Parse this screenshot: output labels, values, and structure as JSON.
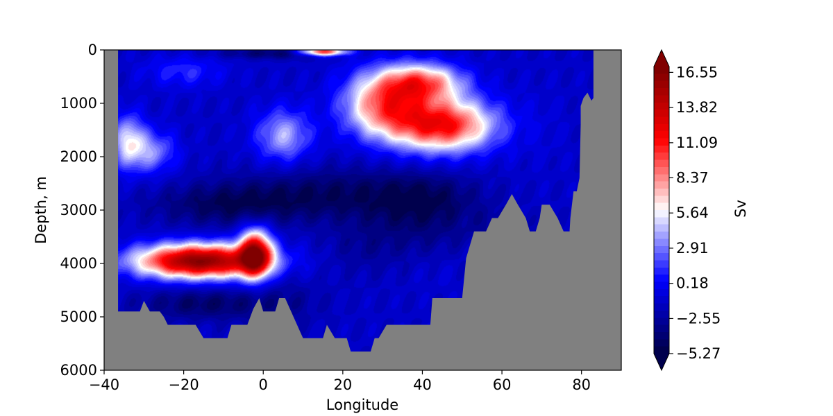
{
  "chart_data": {
    "type": "heatmap",
    "title": "",
    "xlabel": "Longitude",
    "ylabel": "Depth, m",
    "xlim": [
      -40,
      90
    ],
    "ylim": [
      6000,
      0
    ],
    "x_ticks": [
      -40,
      -20,
      0,
      20,
      40,
      60,
      80
    ],
    "x_tick_labels": [
      "−40",
      "−20",
      "0",
      "20",
      "40",
      "60",
      "80"
    ],
    "y_ticks": [
      0,
      1000,
      2000,
      3000,
      4000,
      5000,
      6000
    ],
    "y_tick_labels": [
      "0",
      "1000",
      "2000",
      "3000",
      "4000",
      "5000",
      "6000"
    ],
    "grid": false,
    "land_color": "#808080",
    "colorbar": {
      "label": "Sv",
      "colormap": "seismic",
      "extend": "both",
      "vmin": -5.27,
      "vmax": 17.0,
      "ticks": [
        -5.27,
        -2.55,
        0.18,
        2.91,
        5.64,
        8.37,
        11.09,
        13.82,
        16.55
      ],
      "tick_labels": [
        "−5.27",
        "−2.55",
        "0.18",
        "2.91",
        "5.64",
        "8.37",
        "11.09",
        "13.82",
        "16.55"
      ]
    },
    "features": [
      {
        "lon": 45,
        "depth": 1400,
        "value": 14,
        "sx": 13,
        "sy": 500
      },
      {
        "lon": 30,
        "depth": 1000,
        "value": 10,
        "sx": 10,
        "sy": 600
      },
      {
        "lon": 40,
        "depth": 600,
        "value": 10,
        "sx": 10,
        "sy": 350
      },
      {
        "lon": 15,
        "depth": 30,
        "value": 14,
        "sx": 6,
        "sy": 80
      },
      {
        "lon": 5,
        "depth": 1600,
        "value": 5,
        "sx": 7,
        "sy": 500
      },
      {
        "lon": -34,
        "depth": 1700,
        "value": 6,
        "sx": 4,
        "sy": 500
      },
      {
        "lon": -28,
        "depth": 1900,
        "value": 4,
        "sx": 6,
        "sy": 400
      },
      {
        "lon": -20,
        "depth": 400,
        "value": 1.5,
        "sx": 10,
        "sy": 300
      },
      {
        "lon": -16,
        "depth": 3950,
        "value": 20,
        "sx": 16,
        "sy": 320
      },
      {
        "lon": -2,
        "depth": 3800,
        "value": 16,
        "sx": 4,
        "sy": 450
      },
      {
        "lon": 15,
        "depth": 2700,
        "value": -5,
        "sx": 22,
        "sy": 500
      },
      {
        "lon": -10,
        "depth": 2900,
        "value": -5,
        "sx": 18,
        "sy": 400
      },
      {
        "lon": -15,
        "depth": 4750,
        "value": -5,
        "sx": 16,
        "sy": 300
      },
      {
        "lon": 5,
        "depth": 4700,
        "value": -3,
        "sx": 10,
        "sy": 500
      },
      {
        "lon": 40,
        "depth": 2700,
        "value": -4,
        "sx": 14,
        "sy": 450
      },
      {
        "lon": 40,
        "depth": 3200,
        "value": -4,
        "sx": 14,
        "sy": 600
      },
      {
        "lon": 25,
        "depth": 3700,
        "value": -3,
        "sx": 10,
        "sy": 500
      },
      {
        "lon": 45,
        "depth": 4200,
        "value": -1,
        "sx": 8,
        "sy": 400
      },
      {
        "lon": 5,
        "depth": 60,
        "value": -5,
        "sx": 16,
        "sy": 100
      },
      {
        "lon": 70,
        "depth": 1500,
        "value": -1,
        "sx": 8,
        "sy": 900
      },
      {
        "lon": 60,
        "depth": 3300,
        "value": -3,
        "sx": 6,
        "sy": 300
      }
    ],
    "bottom_profile": [
      [
        -36.5,
        4900
      ],
      [
        -31,
        4900
      ],
      [
        -30,
        4700
      ],
      [
        -28.5,
        4900
      ],
      [
        -26,
        4900
      ],
      [
        -25,
        5000
      ],
      [
        -24,
        5150
      ],
      [
        -17,
        5150
      ],
      [
        -15,
        5400
      ],
      [
        -9,
        5400
      ],
      [
        -8,
        5150
      ],
      [
        -4,
        5150
      ],
      [
        -2.5,
        4850
      ],
      [
        -1,
        4650
      ],
      [
        0,
        4900
      ],
      [
        3,
        4900
      ],
      [
        4,
        4650
      ],
      [
        5.5,
        4650
      ],
      [
        7,
        4900
      ],
      [
        10,
        5400
      ],
      [
        15,
        5400
      ],
      [
        16,
        5150
      ],
      [
        18,
        5400
      ],
      [
        21,
        5400
      ],
      [
        22,
        5650
      ],
      [
        27,
        5650
      ],
      [
        28,
        5400
      ],
      [
        29,
        5400
      ],
      [
        31,
        5150
      ],
      [
        42,
        5150
      ],
      [
        42.5,
        4650
      ],
      [
        50,
        4650
      ],
      [
        51,
        3900
      ],
      [
        53,
        3400
      ],
      [
        56,
        3400
      ],
      [
        57.5,
        3150
      ],
      [
        59,
        3150
      ],
      [
        61,
        2900
      ],
      [
        62.5,
        2700
      ],
      [
        64,
        2900
      ],
      [
        66,
        3150
      ],
      [
        67,
        3400
      ],
      [
        68.5,
        3400
      ],
      [
        69.5,
        3150
      ],
      [
        70,
        2900
      ],
      [
        72,
        2900
      ],
      [
        74,
        3150
      ],
      [
        75.5,
        3400
      ],
      [
        77,
        3400
      ],
      [
        77.2,
        3150
      ],
      [
        78,
        2650
      ],
      [
        78.8,
        2650
      ],
      [
        79.5,
        2400
      ],
      [
        79.8,
        1400
      ],
      [
        79.8,
        1050
      ],
      [
        80.5,
        900
      ],
      [
        81.5,
        800
      ],
      [
        82.5,
        950
      ],
      [
        83,
        900
      ],
      [
        83,
        0
      ]
    ],
    "left_wall_lon": -36.5
  }
}
